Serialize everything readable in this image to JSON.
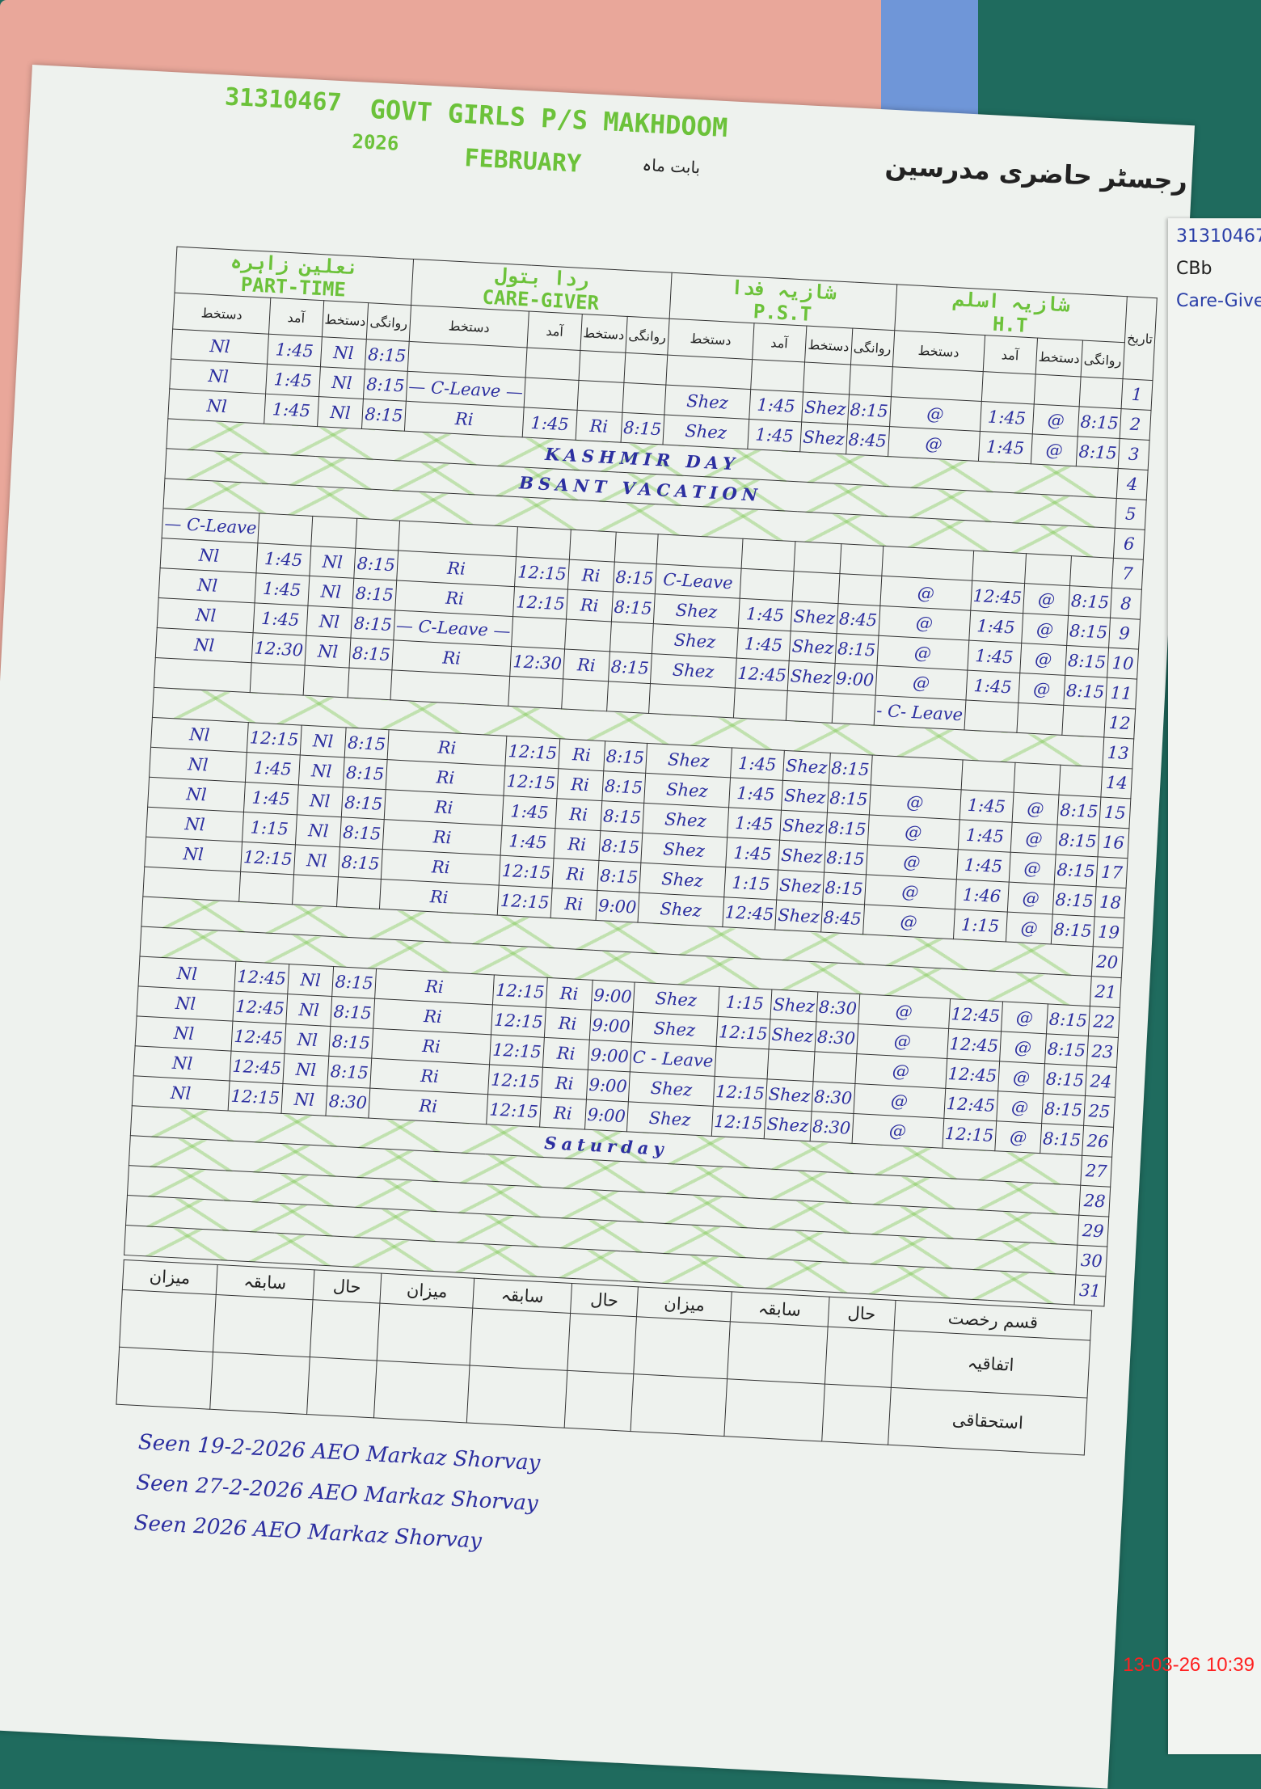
{
  "header": {
    "school_code": "31310467",
    "school_name": "GOVT GIRLS P/S MAKHDOOM",
    "year": "2026",
    "month": "FEBRUARY",
    "month_label_urdu": "بابت ماہ",
    "register_title_urdu": "رجسٹر حاضری مدرسین"
  },
  "column_headers": {
    "arrival": "آمد",
    "signature": "دستخط",
    "departure": "روانگی",
    "date": "تاریخ"
  },
  "teachers": [
    {
      "name_urdu": "نعلین زاہرہ",
      "role": "PART-TIME"
    },
    {
      "name_urdu": "ردا بتول",
      "role": "CARE-GIVER"
    },
    {
      "name_urdu": "شازیہ فدا",
      "role": "P.S.T"
    },
    {
      "name_urdu": "شازیہ اسلم",
      "role": "H.T"
    }
  ],
  "rows": [
    {
      "day": "1",
      "cells": [
        "Nl",
        "1:45",
        "Nl",
        "8:15",
        "",
        "",
        "",
        "",
        "",
        "",
        "",
        "",
        "",
        "",
        "",
        ""
      ]
    },
    {
      "day": "2",
      "cells": [
        "Nl",
        "1:45",
        "Nl",
        "8:15",
        "— C-Leave —",
        "",
        "",
        "",
        "Shez",
        "1:45",
        "Shez",
        "8:15",
        "@",
        "1:45",
        "@",
        "8:15"
      ]
    },
    {
      "day": "3",
      "cells": [
        "Nl",
        "1:45",
        "Nl",
        "8:15",
        "Ri",
        "1:45",
        "Ri",
        "8:15",
        "Shez",
        "1:45",
        "Shez",
        "8:45",
        "@",
        "1:45",
        "@",
        "8:15"
      ]
    },
    {
      "day": "4",
      "span": "KASHMIR DAY"
    },
    {
      "day": "5",
      "span": "BSANT VACATION"
    },
    {
      "day": "6",
      "span": ""
    },
    {
      "day": "7",
      "cells": [
        "— C-Leave",
        "",
        "",
        "",
        "",
        "",
        "",
        "",
        "",
        "",
        "",
        "",
        "",
        "",
        "",
        ""
      ]
    },
    {
      "day": "8",
      "cells": [
        "Nl",
        "1:45",
        "Nl",
        "8:15",
        "Ri",
        "12:15",
        "Ri",
        "8:15",
        "C-Leave",
        "",
        "",
        "",
        "@",
        "12:45",
        "@",
        "8:15"
      ]
    },
    {
      "day": "9",
      "cells": [
        "Nl",
        "1:45",
        "Nl",
        "8:15",
        "Ri",
        "12:15",
        "Ri",
        "8:15",
        "Shez",
        "1:45",
        "Shez",
        "8:45",
        "@",
        "1:45",
        "@",
        "8:15"
      ]
    },
    {
      "day": "10",
      "cells": [
        "Nl",
        "1:45",
        "Nl",
        "8:15",
        "— C-Leave —",
        "",
        "",
        "",
        "Shez",
        "1:45",
        "Shez",
        "8:15",
        "@",
        "1:45",
        "@",
        "8:15"
      ]
    },
    {
      "day": "11",
      "cells": [
        "Nl",
        "12:30",
        "Nl",
        "8:15",
        "Ri",
        "12:30",
        "Ri",
        "8:15",
        "Shez",
        "12:45",
        "Shez",
        "9:00",
        "@",
        "1:45",
        "@",
        "8:15"
      ]
    },
    {
      "day": "12",
      "cells": [
        "",
        "",
        "",
        "",
        "",
        "",
        "",
        "",
        "",
        "",
        "",
        "",
        "- C- Leave",
        "",
        "",
        ""
      ]
    },
    {
      "day": "13",
      "span": ""
    },
    {
      "day": "14",
      "cells": [
        "Nl",
        "12:15",
        "Nl",
        "8:15",
        "Ri",
        "12:15",
        "Ri",
        "8:15",
        "Shez",
        "1:45",
        "Shez",
        "8:15",
        "",
        "",
        "",
        ""
      ]
    },
    {
      "day": "15",
      "cells": [
        "Nl",
        "1:45",
        "Nl",
        "8:15",
        "Ri",
        "12:15",
        "Ri",
        "8:15",
        "Shez",
        "1:45",
        "Shez",
        "8:15",
        "@",
        "1:45",
        "@",
        "8:15"
      ]
    },
    {
      "day": "16",
      "cells": [
        "Nl",
        "1:45",
        "Nl",
        "8:15",
        "Ri",
        "1:45",
        "Ri",
        "8:15",
        "Shez",
        "1:45",
        "Shez",
        "8:15",
        "@",
        "1:45",
        "@",
        "8:15"
      ]
    },
    {
      "day": "17",
      "cells": [
        "Nl",
        "1:15",
        "Nl",
        "8:15",
        "Ri",
        "1:45",
        "Ri",
        "8:15",
        "Shez",
        "1:45",
        "Shez",
        "8:15",
        "@",
        "1:45",
        "@",
        "8:15"
      ]
    },
    {
      "day": "18",
      "cells": [
        "Nl",
        "12:15",
        "Nl",
        "8:15",
        "Ri",
        "12:15",
        "Ri",
        "8:15",
        "Shez",
        "1:15",
        "Shez",
        "8:15",
        "@",
        "1:46",
        "@",
        "8:15"
      ]
    },
    {
      "day": "19",
      "cells": [
        "",
        "",
        "",
        "",
        "Ri",
        "12:15",
        "Ri",
        "9:00",
        "Shez",
        "12:45",
        "Shez",
        "8:45",
        "@",
        "1:15",
        "@",
        "8:15"
      ]
    },
    {
      "day": "20",
      "span": ""
    },
    {
      "day": "21",
      "span": ""
    },
    {
      "day": "22",
      "cells": [
        "Nl",
        "12:45",
        "Nl",
        "8:15",
        "Ri",
        "12:15",
        "Ri",
        "9:00",
        "Shez",
        "1:15",
        "Shez",
        "8:30",
        "@",
        "12:45",
        "@",
        "8:15"
      ]
    },
    {
      "day": "23",
      "cells": [
        "Nl",
        "12:45",
        "Nl",
        "8:15",
        "Ri",
        "12:15",
        "Ri",
        "9:00",
        "Shez",
        "12:15",
        "Shez",
        "8:30",
        "@",
        "12:45",
        "@",
        "8:15"
      ]
    },
    {
      "day": "24",
      "cells": [
        "Nl",
        "12:45",
        "Nl",
        "8:15",
        "Ri",
        "12:15",
        "Ri",
        "9:00",
        "C - Leave",
        "",
        "",
        "",
        "@",
        "12:45",
        "@",
        "8:15"
      ]
    },
    {
      "day": "25",
      "cells": [
        "Nl",
        "12:45",
        "Nl",
        "8:15",
        "Ri",
        "12:15",
        "Ri",
        "9:00",
        "Shez",
        "12:15",
        "Shez",
        "8:30",
        "@",
        "12:45",
        "@",
        "8:15"
      ]
    },
    {
      "day": "26",
      "cells": [
        "Nl",
        "12:15",
        "Nl",
        "8:30",
        "Ri",
        "12:15",
        "Ri",
        "9:00",
        "Shez",
        "12:15",
        "Shez",
        "8:30",
        "@",
        "12:15",
        "@",
        "8:15"
      ]
    },
    {
      "day": "27",
      "span": "Saturday"
    },
    {
      "day": "28",
      "span": ""
    },
    {
      "day": "29",
      "span": ""
    },
    {
      "day": "30",
      "span": ""
    },
    {
      "day": "31",
      "span": ""
    }
  ],
  "footer": {
    "labels": [
      "میزان",
      "سابقہ",
      "حال",
      "میزان",
      "سابقہ",
      "حال",
      "میزان",
      "سابقہ",
      "حال"
    ],
    "row_labels": [
      "قسم رخصت",
      "اتفاقیہ",
      "استحقاقی"
    ]
  },
  "signatures": [
    {
      "text": "Seen 19-2-2026 AEO Markaz Shorvay"
    },
    {
      "text": "Seen 27-2-2026 AEO Markaz Shorvay"
    },
    {
      "text": "Seen 2026 AEO Markaz Shorvay"
    }
  ],
  "right_page": {
    "code": "31310467",
    "label": "CBb",
    "role": "Care-Giver"
  },
  "timestamp": "13-03-26 10:39",
  "colors": {
    "highlighter": "#6cc23a",
    "ink": "#2c2fa0",
    "timestamp": "#ff2020"
  }
}
